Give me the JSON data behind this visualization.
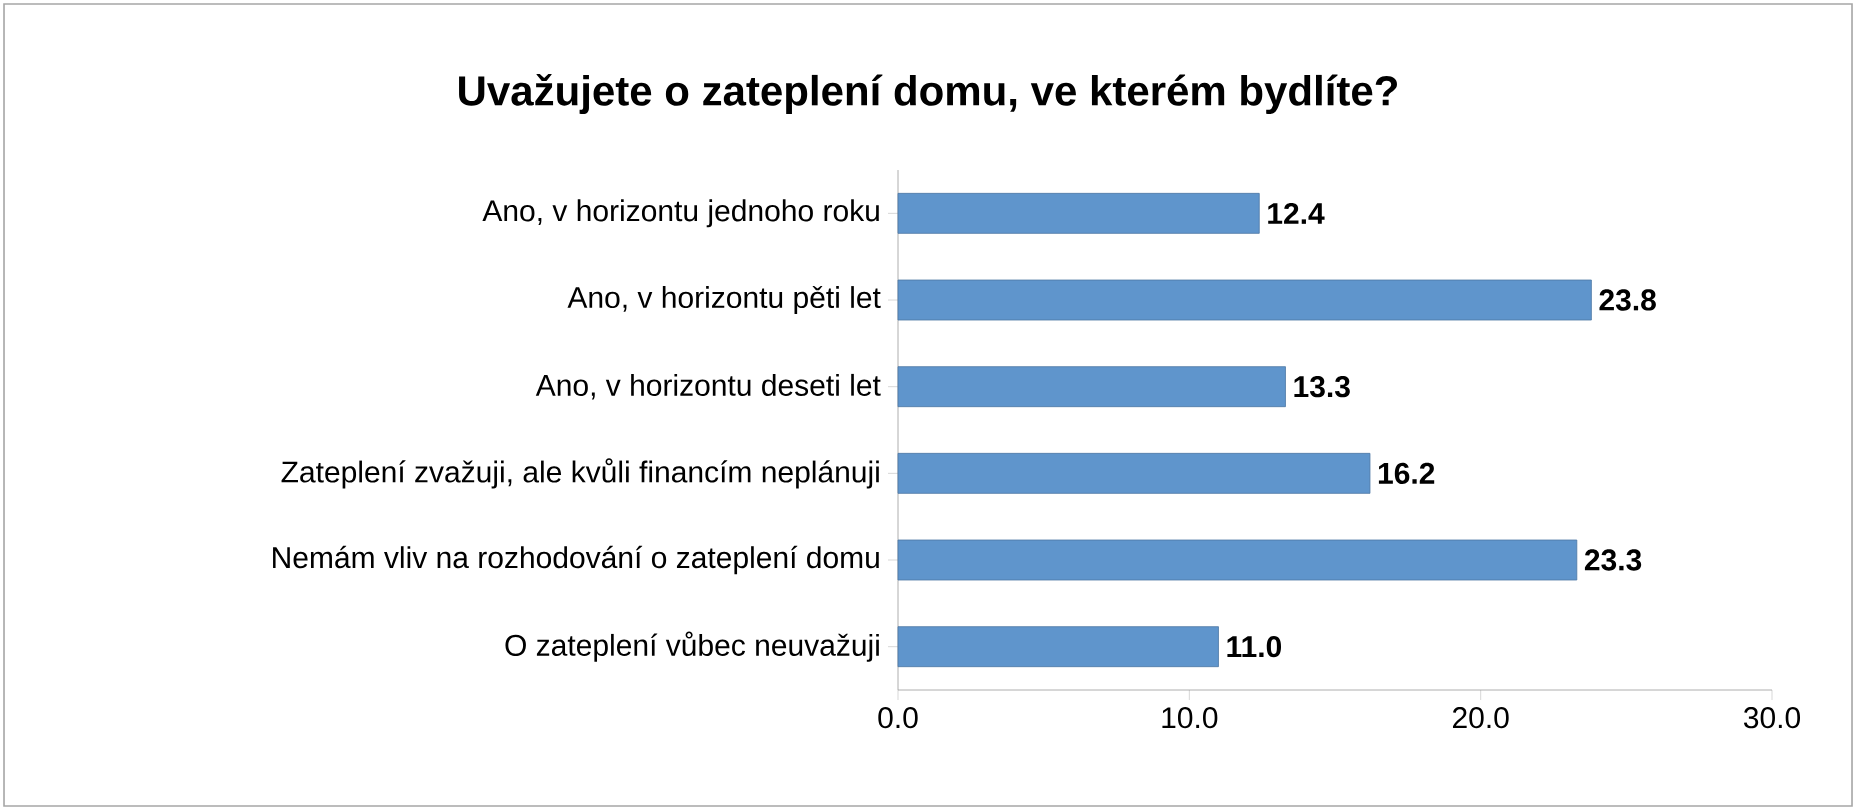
{
  "chart_data": {
    "type": "bar",
    "orientation": "horizontal",
    "title": "Uvažujete o zateplení domu, ve kterém bydlíte?",
    "categories": [
      "Ano, v horizontu jednoho roku",
      "Ano, v horizontu pěti let",
      "Ano, v horizontu deseti let",
      "Zateplení zvažuji, ale kvůli financím neplánuji",
      "Nemám vliv na rozhodování o zateplení domu",
      "O zateplení vůbec neuvažuji"
    ],
    "values": [
      12.4,
      23.8,
      13.3,
      16.2,
      23.3,
      11.0
    ],
    "value_labels": [
      "12.4",
      "23.8",
      "13.3",
      "16.2",
      "23.3",
      "11.0"
    ],
    "color": "#5f95cc",
    "xlim": [
      0,
      30
    ],
    "xticks": [
      {
        "value": 0,
        "label": "0.0"
      },
      {
        "value": 10,
        "label": "10.0"
      },
      {
        "value": 20,
        "label": "20.0"
      },
      {
        "value": 30,
        "label": "30.0"
      }
    ],
    "grid": false
  }
}
